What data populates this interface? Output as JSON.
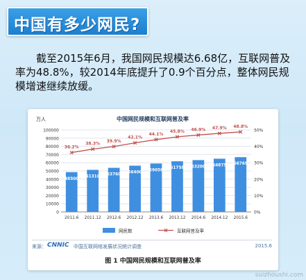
{
  "banner": {
    "title": "中国有多少网民?"
  },
  "intro": {
    "text": "截至2015年6月，我国网民规模达6.68亿，互联网普及率为48.8%，较2014年底提升了0.9个百分点，整体网民规模增速继续放缓。"
  },
  "figure": {
    "source_label": "来源：",
    "source_logo": "CNNIC",
    "source_org": "中国互联网络发展状况统计调查",
    "source_date": "2015.6",
    "caption": "图 1 中国网民规模和互联网普及率"
  },
  "watermark": "suizhoushi.com",
  "chart_data": {
    "type": "bar",
    "title": "中国网民规模和互联网普及率",
    "ylabel": "万人",
    "ylim": [
      0,
      100000
    ],
    "y2lim": [
      0,
      50
    ],
    "yticks": [
      "0",
      "10000",
      "20000",
      "30000",
      "40000",
      "50000",
      "60000",
      "70000",
      "80000",
      "90000",
      "100000"
    ],
    "y2ticks": [
      "0%",
      "10%",
      "20%",
      "30%",
      "40%",
      "50%"
    ],
    "categories": [
      "2011.6",
      "2011.12",
      "2012.6",
      "2012.12",
      "2013.6",
      "2013.12",
      "2014.6",
      "2014.12",
      "2015.6"
    ],
    "series": [
      {
        "name": "网民数",
        "type": "bar",
        "color": "#3f8fe0",
        "values": [
          48500,
          51310,
          53760,
          56400,
          59056,
          61758,
          63200,
          64875,
          66769
        ],
        "labels": [
          "48500",
          "51310",
          "53760",
          "56400",
          "59056",
          "61758",
          "63200",
          "64875",
          "66769"
        ]
      },
      {
        "name": "互联网普及率",
        "type": "line",
        "color": "#c0504d",
        "axis": "right",
        "values": [
          36.2,
          38.3,
          39.9,
          42.1,
          44.1,
          45.8,
          46.9,
          47.9,
          48.8
        ],
        "labels": [
          "36.2%",
          "38.3%",
          "39.9%",
          "42.1%",
          "44.1%",
          "45.8%",
          "46.9%",
          "47.9%",
          "48.8%"
        ]
      }
    ],
    "legend_position": "bottom",
    "grid": true
  }
}
